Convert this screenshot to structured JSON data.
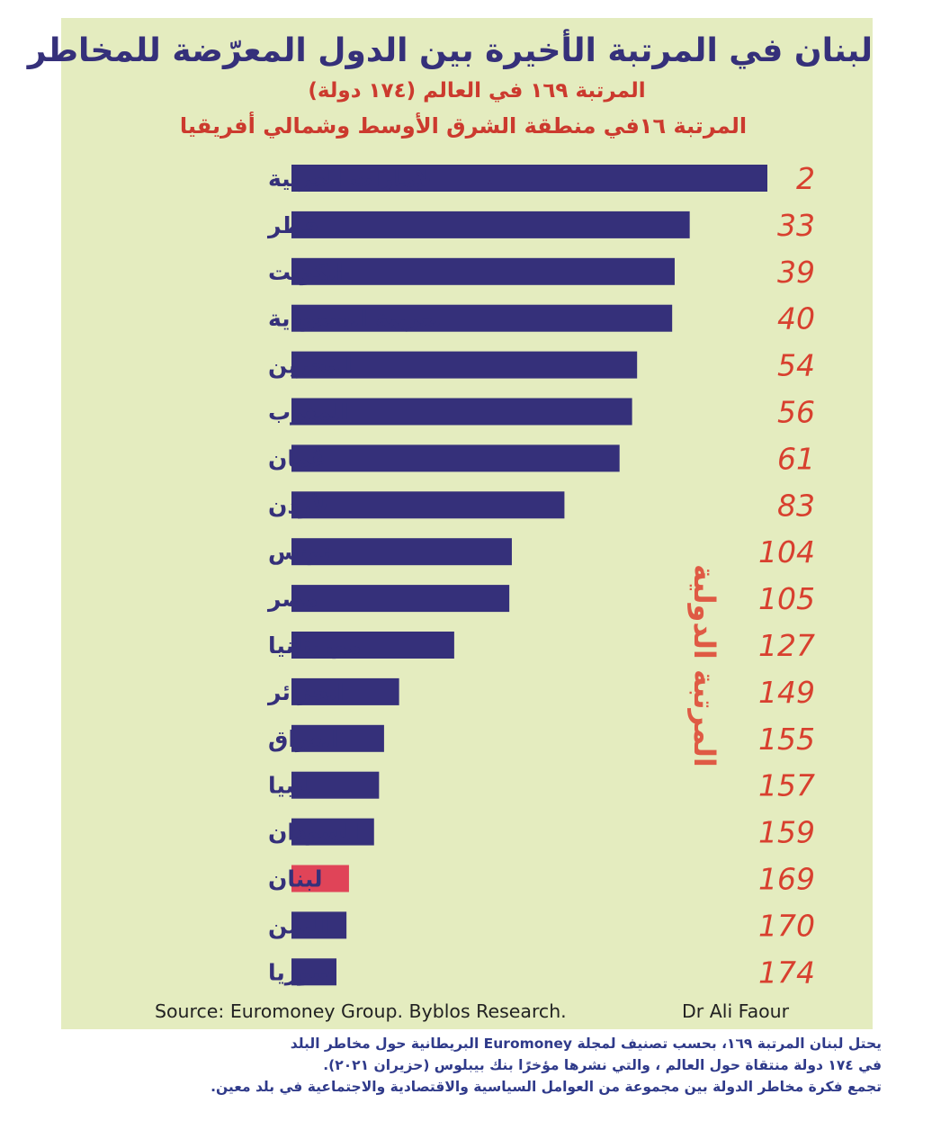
{
  "title": "لبنان في المرتبة الأخيرة بين الدول المعرّضة للمخاطر",
  "subtitle1": "المرتبة ١٦٩ في العالم (١٧٤ دولة)",
  "subtitle2": "المرتبة ١٦في منطقة الشرق الأوسط وشمالي أفريقيا",
  "source": "Source: Euromoney Group. Byblos Research.",
  "author": "Dr Ali Faour",
  "footnote": {
    "line1": "يحتل لبنان المرتبة ١٦٩، بحسب تصنيف لمجلة Euromoney البريطانية حول مخاطر البلد",
    "line2": "في ١٧٤ دولة منتقاة حول العالم ، والتي نشرها مؤخرًا بنك بيبلوس (حزيران ٢٠٢١).",
    "line3": "تجمع فكرة مخاطر الدولة بين مجموعة من العوامل السياسية والاقتصادية والاجتماعية في بلد معين."
  },
  "colors": {
    "background": "#e4ecbf",
    "bar": "#35307a",
    "highlight_bar": "#e04458",
    "category_label": "#35307a",
    "value_label": "#d8402f",
    "title": "#35307a",
    "subtitle": "#cc3a2e"
  },
  "chart_data": {
    "type": "bar",
    "orientation": "horizontal",
    "title": "لبنان في المرتبة الأخيرة بين الدول المعرّضة للمخاطر",
    "ylabel": "المرتبة الدولية",
    "xlim": [
      0,
      174
    ],
    "grid": false,
    "highlight": "لبنان",
    "categories": [
      "الإمارات العربية",
      "قطر",
      "الكويت",
      "العربية السعودية",
      "البحرين",
      "المغرب",
      "عُمان",
      "الأردن",
      "تونس",
      "مصر",
      "موريتانيا",
      "الجزائر",
      "العراق",
      "ليبيا",
      "السودان",
      "لبنان",
      "اليمن",
      "سوريا"
    ],
    "values": [
      2,
      33,
      39,
      40,
      54,
      56,
      61,
      83,
      104,
      105,
      127,
      149,
      155,
      157,
      159,
      169,
      170,
      174
    ]
  }
}
